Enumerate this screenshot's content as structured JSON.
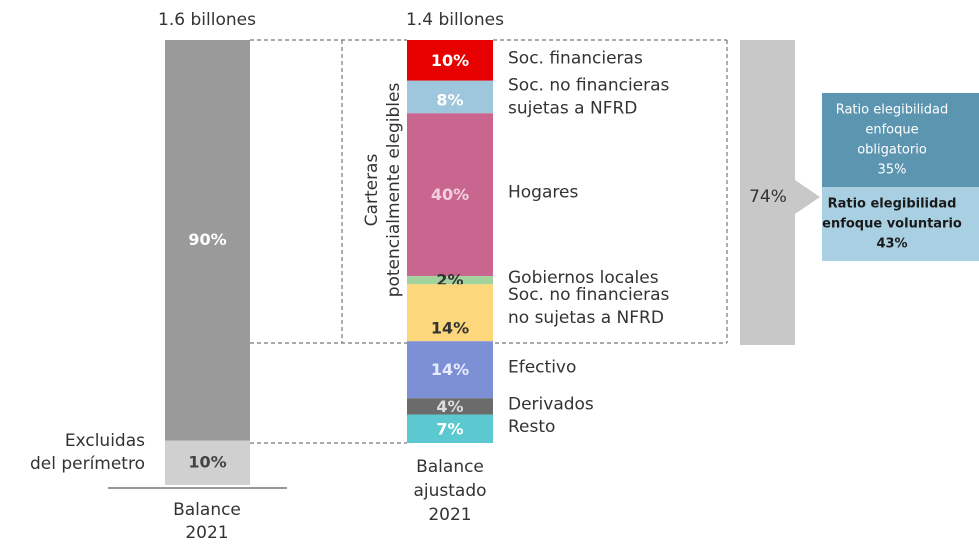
{
  "left_bar": {
    "total": "1.6 billones",
    "caption": [
      "Balance",
      "2021"
    ],
    "segments": [
      {
        "value": 90,
        "label": "90%",
        "color": "#9a9a9a",
        "text_color": "#ffffff"
      },
      {
        "value": 10,
        "label": "10%",
        "color": "#d0d0d0",
        "text_color": "#444444",
        "name": [
          "Excluidas",
          "del perímetro"
        ]
      }
    ]
  },
  "middle_bar": {
    "total": "1.4 billones",
    "caption": [
      "Balance",
      "ajustado",
      "2021"
    ],
    "segments": [
      {
        "value": 10,
        "label": "10%",
        "color": "#e60000",
        "text_color": "#ffffff",
        "name": [
          "Soc. financieras"
        ]
      },
      {
        "value": 8,
        "label": "8%",
        "color": "#9ec6dc",
        "text_color": "#ffffff",
        "name": [
          "Soc. no financieras",
          "sujetas a NFRD"
        ]
      },
      {
        "value": 40,
        "label": "40%",
        "color": "#c9668f",
        "text_color": "#f3d0de",
        "name": [
          "Hogares"
        ]
      },
      {
        "value": 2,
        "label": "2%",
        "color": "#a3d39c",
        "text_color": "#333333",
        "name": [
          "Gobiernos locales"
        ]
      },
      {
        "value": 14,
        "label": "14%",
        "color": "#fcd77c",
        "text_color": "#333333",
        "name": [
          "Soc. no financieras",
          "no sujetas a NFRD"
        ]
      },
      {
        "value": 14,
        "label": "14%",
        "color": "#7d90d6",
        "text_color": "#e8ecff",
        "name": [
          "Efectivo"
        ]
      },
      {
        "value": 4,
        "label": "4%",
        "color": "#6b6b6b",
        "text_color": "#dddddd",
        "name": [
          "Derivados"
        ]
      },
      {
        "value": 7,
        "label": "7%",
        "color": "#5cc8d0",
        "text_color": "#ffffff",
        "name": [
          "Resto"
        ]
      }
    ]
  },
  "bracket_label": [
    "Carteras",
    "potencialmente elegibles"
  ],
  "eligible_share": "74%",
  "ratios": [
    {
      "lines": [
        "Ratio elegibilidad",
        "enfoque",
        "obligatorio",
        "35%"
      ],
      "color": "#5b95b0",
      "text_color": "#ffffff"
    },
    {
      "lines": [
        "Ratio elegibilidad",
        "enfoque voluntario",
        "43%"
      ],
      "color": "#a9d0e2",
      "text_color": "#1a1a1a"
    }
  ]
}
